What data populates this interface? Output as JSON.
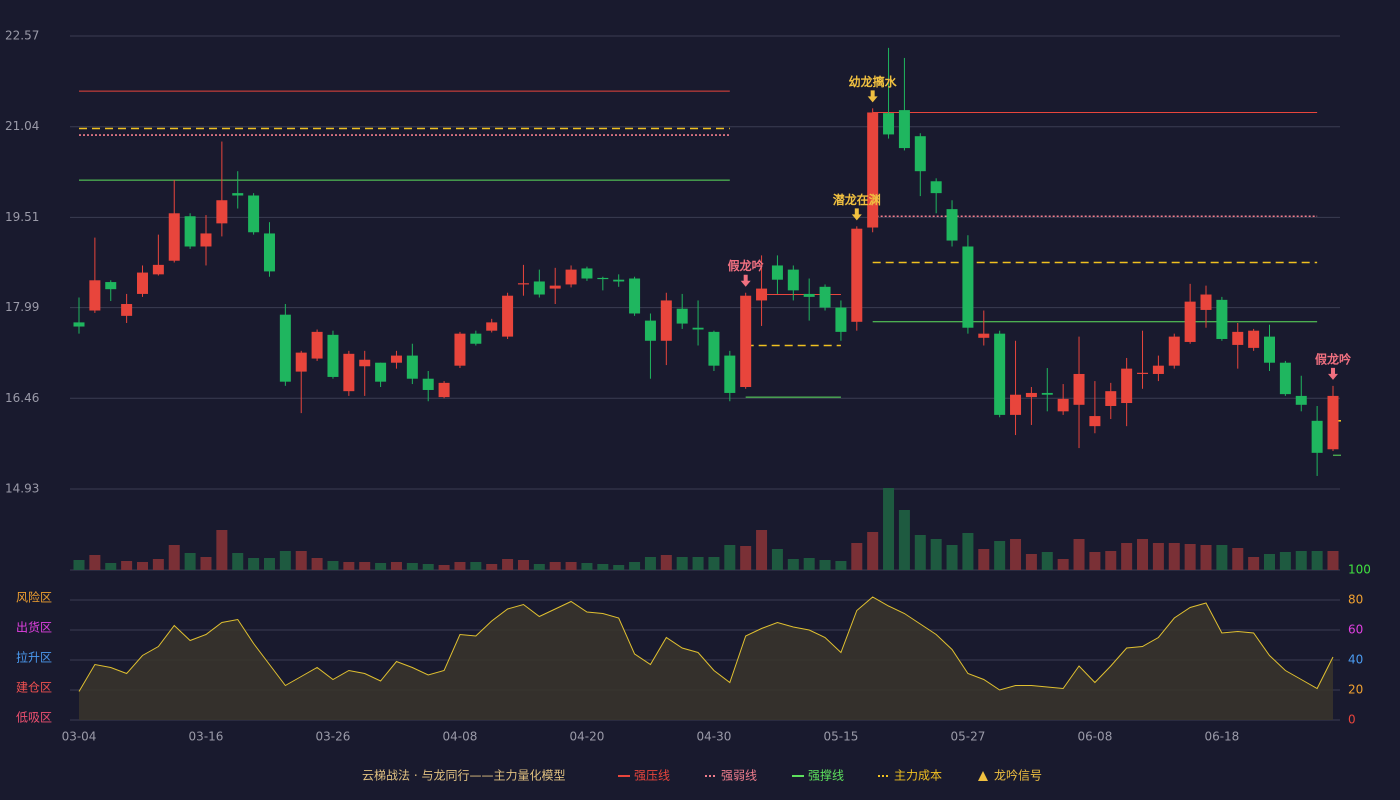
{
  "chart_data": {
    "type": "candlestick",
    "categories": [
      "03-04",
      null,
      null,
      null,
      null,
      null,
      null,
      null,
      "03-16",
      null,
      null,
      null,
      null,
      null,
      null,
      null,
      "03-26",
      null,
      null,
      null,
      null,
      null,
      null,
      null,
      "04-08",
      null,
      null,
      null,
      null,
      null,
      null,
      null,
      "04-20",
      null,
      null,
      null,
      null,
      null,
      null,
      null,
      "04-30",
      null,
      null,
      null,
      null,
      null,
      null,
      null,
      "05-15",
      null,
      null,
      null,
      null,
      null,
      null,
      null,
      "05-27",
      null,
      null,
      null,
      null,
      null,
      null,
      null,
      "06-08",
      null,
      null,
      null,
      null,
      null,
      null,
      null,
      "06-18",
      null,
      null,
      null,
      null,
      null,
      null,
      null
    ],
    "open": [
      17.74,
      17.94,
      18.42,
      17.85,
      18.22,
      18.55,
      18.78,
      19.53,
      19.02,
      19.41,
      19.92,
      19.88,
      19.24,
      17.87,
      16.91,
      17.13,
      17.53,
      16.58,
      17.0,
      17.06,
      17.06,
      17.18,
      16.79,
      16.48,
      17.01,
      17.55,
      17.6,
      17.5,
      18.38,
      18.43,
      18.31,
      18.38,
      18.65,
      18.49,
      18.46,
      18.48,
      17.77,
      17.43,
      17.97,
      17.65,
      17.58,
      17.18,
      16.65,
      18.11,
      18.7,
      18.63,
      18.22,
      18.34,
      17.99,
      17.75,
      19.34,
      21.27,
      21.32,
      20.88,
      20.12,
      19.65,
      19.02,
      17.48,
      17.55,
      16.18,
      16.48,
      16.55,
      16.24,
      16.35,
      15.99,
      16.33,
      16.38,
      16.87,
      16.87,
      17.01,
      17.41,
      17.95,
      18.12,
      17.36,
      17.31,
      17.5,
      17.06,
      16.5,
      16.08,
      15.6
    ],
    "high": [
      18.16,
      19.17,
      18.45,
      18.22,
      18.7,
      19.22,
      20.14,
      19.58,
      19.55,
      20.79,
      20.29,
      19.92,
      19.43,
      18.05,
      17.26,
      17.62,
      17.6,
      17.26,
      17.26,
      17.06,
      17.26,
      17.38,
      16.92,
      16.75,
      17.58,
      17.6,
      17.8,
      18.24,
      18.71,
      18.63,
      18.66,
      18.7,
      18.68,
      18.51,
      18.55,
      18.51,
      17.89,
      18.24,
      18.22,
      18.11,
      17.6,
      17.26,
      18.24,
      18.87,
      18.87,
      18.7,
      18.48,
      18.38,
      18.11,
      19.36,
      21.35,
      22.37,
      22.2,
      20.93,
      20.17,
      19.8,
      19.21,
      17.94,
      17.6,
      17.43,
      16.65,
      16.97,
      16.7,
      17.5,
      16.75,
      16.72,
      17.14,
      17.6,
      17.18,
      17.55,
      18.39,
      18.36,
      18.17,
      17.73,
      17.63,
      17.7,
      17.09,
      16.84,
      16.33,
      16.67
    ],
    "low": [
      17.55,
      17.9,
      18.1,
      17.73,
      18.17,
      18.53,
      18.75,
      18.98,
      18.7,
      19.19,
      19.66,
      19.22,
      18.51,
      16.67,
      16.21,
      17.09,
      16.79,
      16.5,
      16.5,
      16.65,
      16.96,
      16.7,
      16.41,
      16.46,
      16.97,
      17.35,
      17.57,
      17.46,
      18.19,
      18.16,
      18.05,
      18.33,
      18.44,
      18.28,
      18.34,
      17.85,
      16.79,
      17.02,
      17.63,
      17.35,
      16.92,
      16.41,
      16.62,
      17.68,
      18.22,
      18.11,
      17.77,
      17.94,
      17.43,
      17.6,
      19.26,
      20.84,
      20.64,
      19.87,
      19.58,
      19.02,
      17.55,
      17.35,
      16.14,
      15.84,
      16.01,
      16.24,
      16.18,
      15.62,
      15.87,
      16.11,
      15.99,
      16.62,
      16.75,
      16.96,
      17.38,
      17.65,
      17.43,
      16.96,
      17.26,
      16.92,
      16.5,
      16.24,
      15.15,
      15.57
    ],
    "close": [
      17.67,
      18.45,
      18.3,
      18.05,
      18.58,
      18.71,
      19.58,
      19.02,
      19.24,
      19.8,
      19.88,
      19.26,
      18.6,
      16.74,
      17.23,
      17.58,
      16.82,
      17.21,
      17.11,
      16.74,
      17.18,
      16.79,
      16.6,
      16.72,
      17.55,
      17.38,
      17.74,
      18.19,
      18.4,
      18.21,
      18.36,
      18.63,
      18.48,
      18.47,
      18.43,
      17.89,
      17.43,
      18.11,
      17.72,
      17.62,
      17.01,
      16.55,
      18.19,
      18.31,
      18.46,
      18.28,
      18.17,
      17.99,
      17.58,
      19.32,
      21.28,
      20.91,
      20.68,
      20.29,
      19.92,
      19.12,
      17.65,
      17.55,
      16.18,
      16.52,
      16.55,
      16.52,
      16.45,
      16.87,
      16.16,
      16.58,
      16.96,
      16.89,
      17.01,
      17.5,
      18.09,
      18.21,
      17.46,
      17.58,
      17.6,
      17.06,
      16.53,
      16.35,
      15.54,
      16.5
    ],
    "volume": [
      10,
      15,
      7,
      9,
      8,
      11,
      25,
      17,
      13,
      40,
      17,
      12,
      12,
      19,
      19,
      12,
      9,
      8,
      8,
      7,
      8,
      7,
      6,
      5,
      8,
      8,
      6,
      11,
      10,
      6,
      8,
      8,
      7,
      6,
      5,
      8,
      13,
      15,
      13,
      13,
      13,
      25,
      24,
      40,
      21,
      11,
      12,
      10,
      9,
      27,
      38,
      82,
      60,
      35,
      31,
      25,
      37,
      21,
      29,
      31,
      16,
      18,
      11,
      31,
      18,
      19,
      27,
      31,
      27,
      27,
      26,
      25,
      25,
      22,
      13,
      16,
      18,
      19,
      19,
      19
    ],
    "ylim": [
      14.93,
      22.57
    ],
    "yticks": [
      22.57,
      21.04,
      19.51,
      17.99,
      16.46,
      14.93
    ],
    "up_color": "#e8453c",
    "down_color": "#1fb65f",
    "levels": [
      {
        "name": "强压线",
        "color": "#e8453c",
        "style": "solid",
        "segments": [
          {
            "start": 0,
            "end": 41,
            "value": 21.64
          },
          {
            "start": 43,
            "end": 48,
            "value": 18.21
          },
          {
            "start": 50,
            "end": 78,
            "value": 21.28
          }
        ]
      },
      {
        "name": "强弱线",
        "color": "#f07d8c",
        "style": "dotted",
        "segments": [
          {
            "start": 0,
            "end": 41,
            "value": 20.9
          },
          {
            "start": 50,
            "end": 78,
            "value": 19.53
          }
        ]
      },
      {
        "name": "强撑线",
        "color": "#5de05d",
        "style": "solid",
        "segments": [
          {
            "start": 0,
            "end": 41,
            "value": 20.14
          },
          {
            "start": 42,
            "end": 48,
            "value": 16.48
          },
          {
            "start": 50,
            "end": 78,
            "value": 17.75
          },
          {
            "start": 79,
            "end": 79,
            "value": 15.5
          }
        ]
      },
      {
        "name": "主力成本",
        "color": "#f0c020",
        "style": "dashed",
        "segments": [
          {
            "start": 0,
            "end": 41,
            "value": 21.01
          },
          {
            "start": 42,
            "end": 48,
            "value": 17.35
          },
          {
            "start": 50,
            "end": 78,
            "value": 18.75
          },
          {
            "start": 79,
            "end": 79,
            "value": 16.08
          }
        ]
      }
    ],
    "signals": [
      {
        "index": 42,
        "label": "假龙吟",
        "color": "#f07080"
      },
      {
        "index": 49,
        "label": "潜龙在渊",
        "color": "#f0c040"
      },
      {
        "index": 50,
        "label": "幼龙摛水",
        "color": "#f0c040"
      },
      {
        "index": 79,
        "label": "假龙吟",
        "color": "#f07080"
      }
    ],
    "oscillator": {
      "values": [
        19,
        37,
        35,
        31,
        43,
        49,
        63,
        53,
        57,
        65,
        67,
        51,
        37,
        23,
        29,
        35,
        27,
        33,
        31,
        26,
        39,
        35,
        30,
        33,
        57,
        56,
        66,
        74,
        77,
        69,
        74,
        79,
        72,
        71,
        68,
        44,
        37,
        55,
        48,
        45,
        33,
        25,
        56,
        61,
        65,
        62,
        60,
        55,
        45,
        73,
        82,
        76,
        71,
        64,
        57,
        47,
        31,
        27,
        20,
        23,
        23,
        22,
        21,
        36,
        25,
        36,
        48,
        49,
        55,
        68,
        75,
        78,
        58,
        59,
        58,
        43,
        33,
        27,
        21,
        42
      ],
      "color": "#e0c030",
      "ylim": [
        0,
        100
      ],
      "yticks": [
        0,
        20,
        40,
        60,
        80,
        100
      ],
      "tick_colors": [
        "#e8453c",
        "#f0a030",
        "#4a9af0",
        "#e040e0",
        "#f0a030",
        "#40e040"
      ],
      "zones": [
        {
          "label": "风险区",
          "value": 80,
          "color": "#f0a030"
        },
        {
          "label": "出货区",
          "value": 60,
          "color": "#e040e0"
        },
        {
          "label": "拉升区",
          "value": 40,
          "color": "#4a9af0"
        },
        {
          "label": "建仓区",
          "value": 20,
          "color": "#f05050"
        },
        {
          "label": "低吸区",
          "value": 0,
          "color": "#f05070"
        }
      ]
    },
    "legend_title": "云梯战法 · 与龙同行——主力量化模型",
    "signal_legend": "龙吟信号",
    "signal_legend_color": "#f0c040"
  }
}
